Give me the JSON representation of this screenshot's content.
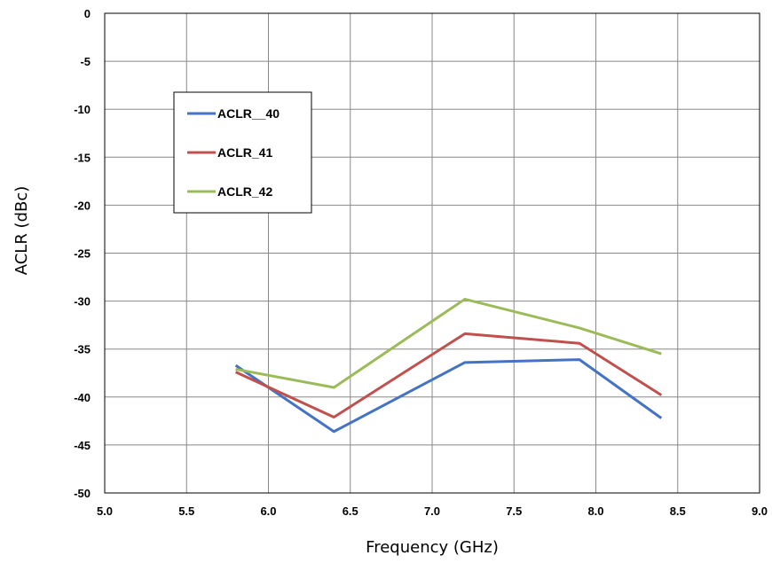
{
  "chart_data": {
    "type": "line",
    "xlabel": "Frequency (GHz)",
    "ylabel": "ACLR (dBc)",
    "xlim": [
      5.0,
      9.0
    ],
    "ylim": [
      -50,
      0
    ],
    "x_ticks": [
      "5.0",
      "5.5",
      "6.0",
      "6.5",
      "7.0",
      "7.5",
      "8.0",
      "8.5",
      "9.0"
    ],
    "y_ticks": [
      "0",
      "-5",
      "-10",
      "-15",
      "-20",
      "-25",
      "-30",
      "-35",
      "-40",
      "-45",
      "-50"
    ],
    "grid": true,
    "legend_position": "upper-left",
    "x": [
      5.8,
      6.4,
      7.2,
      7.9,
      8.4
    ],
    "series": [
      {
        "name": "ACLR__40",
        "color": "#4472C4",
        "values": [
          -36.7,
          -43.6,
          -36.4,
          -36.1,
          -42.2
        ]
      },
      {
        "name": "ACLR_41",
        "color": "#C0504D",
        "values": [
          -37.4,
          -42.1,
          -33.4,
          -34.4,
          -39.8
        ]
      },
      {
        "name": "ACLR_42",
        "color": "#9BBB59",
        "values": [
          -37.1,
          -39.0,
          -29.8,
          -32.8,
          -35.5
        ]
      }
    ]
  }
}
